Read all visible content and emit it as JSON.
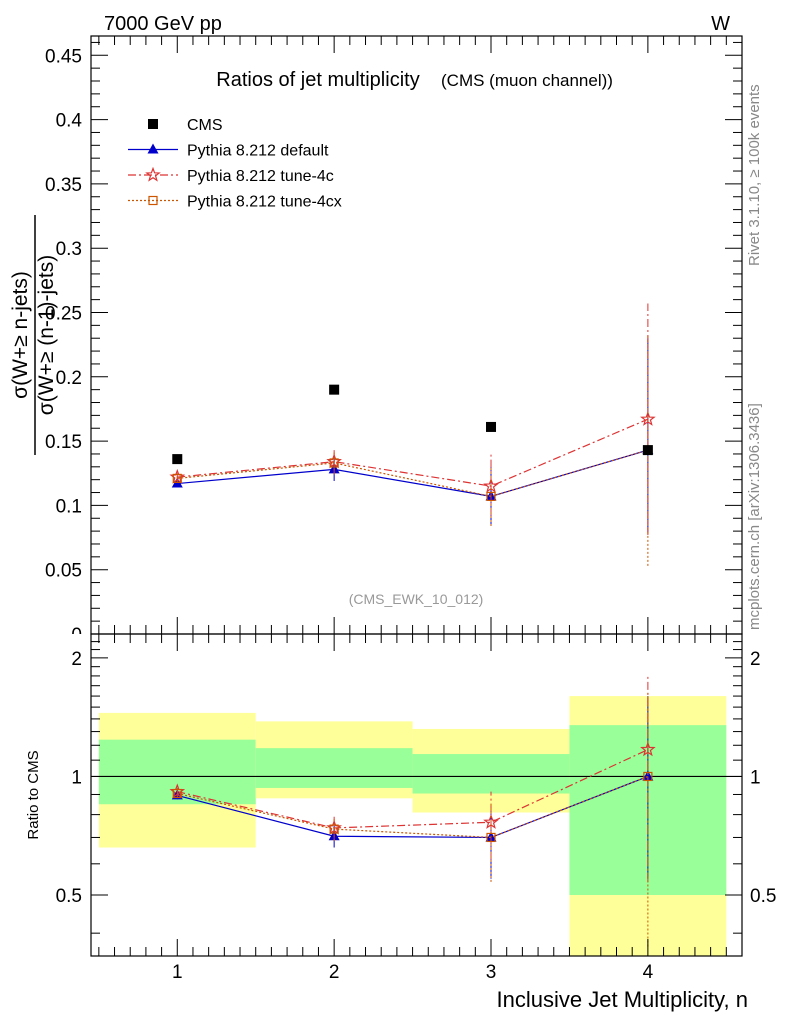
{
  "header": {
    "beam": "7000 GeV pp",
    "process": "W"
  },
  "side_labels": {
    "generator": "Rivet 3.1.10, ≥ 100k events",
    "source": "mcplots.cern.ch [arXiv:1306.3436]"
  },
  "colors": {
    "data": "#000000",
    "default": "#0000cc",
    "tune4c": "#dd3333",
    "tune4cx": "#cc5500",
    "band_inner": "#99ff99",
    "band_outer": "#ffff99"
  },
  "chart_data": [
    {
      "type": "scatter",
      "title": "Ratios of jet multiplicity",
      "subtitle": "(CMS (muon channel))",
      "watermark": "(CMS_EWK_10_012)",
      "ylabel_num": "σ(W+≥ n-jets)",
      "ylabel_den": "σ(W+≥ (n-1)-jets)",
      "xlim": [
        0.45,
        4.6
      ],
      "ylim": [
        0,
        0.465
      ],
      "yticks": [
        "0",
        "0.05",
        "0.1",
        "0.15",
        "0.2",
        "0.25",
        "0.3",
        "0.35",
        "0.4",
        "0.45"
      ],
      "legend_position": "top-left",
      "series": [
        {
          "name": "CMS",
          "key": "data",
          "marker": "square-filled",
          "line": "none",
          "x": [
            1,
            2,
            3,
            4
          ],
          "y": [
            0.136,
            0.19,
            0.161,
            0.143
          ]
        },
        {
          "name": "Pythia 8.212 default",
          "key": "default",
          "marker": "triangle",
          "line": "solid",
          "x": [
            1,
            2,
            3,
            4
          ],
          "y": [
            0.117,
            0.128,
            0.107,
            0.143
          ],
          "err_lo": [
            0.003,
            0.009,
            0.023,
            0.064
          ],
          "err_hi": [
            0.003,
            0.009,
            0.023,
            0.087
          ]
        },
        {
          "name": "Pythia 8.212 tune-4c",
          "key": "tune4c",
          "marker": "star",
          "line": "dashdot",
          "x": [
            1,
            2,
            3,
            4
          ],
          "y": [
            0.122,
            0.134,
            0.115,
            0.167
          ],
          "err_lo": [
            0.003,
            0.009,
            0.023,
            0.09
          ],
          "err_hi": [
            0.003,
            0.009,
            0.025,
            0.09
          ]
        },
        {
          "name": "Pythia 8.212 tune-4cx",
          "key": "tune4cx",
          "marker": "square-open",
          "line": "dotted",
          "x": [
            1,
            2,
            3,
            4
          ],
          "y": [
            0.121,
            0.133,
            0.107,
            0.143
          ],
          "err_lo": [
            0.003,
            0.009,
            0.023,
            0.09
          ],
          "err_hi": [
            0.003,
            0.009,
            0.023,
            0.09
          ]
        }
      ]
    },
    {
      "type": "scatter",
      "ylabel": "Ratio to CMS",
      "xlabel": "Inclusive Jet Multiplicity, n",
      "xlim": [
        0.45,
        4.6
      ],
      "ylim": [
        0.35,
        2.3
      ],
      "xticks": [
        "1",
        "2",
        "3",
        "4"
      ],
      "yticks": [
        "0.5",
        "1",
        "2"
      ],
      "scale": "log",
      "bands": [
        {
          "x0": 0.5,
          "x1": 1.5,
          "inner": [
            0.85,
            1.24
          ],
          "outer": [
            0.66,
            1.45
          ]
        },
        {
          "x0": 1.5,
          "x1": 2.5,
          "inner": [
            0.935,
            1.18
          ],
          "outer": [
            0.88,
            1.38
          ]
        },
        {
          "x0": 2.5,
          "x1": 3.5,
          "inner": [
            0.905,
            1.14
          ],
          "outer": [
            0.81,
            1.32
          ]
        },
        {
          "x0": 3.5,
          "x1": 4.5,
          "inner": [
            0.5,
            1.35
          ],
          "outer": [
            0.35,
            1.6
          ]
        }
      ],
      "series": [
        {
          "name": "Pythia 8.212 default",
          "key": "default",
          "x": [
            1,
            2,
            3,
            4
          ],
          "y": [
            0.895,
            0.705,
            0.7,
            1.0
          ],
          "err_lo": [
            0.02,
            0.045,
            0.15,
            0.45
          ],
          "err_hi": [
            0.02,
            0.045,
            0.15,
            0.6
          ]
        },
        {
          "name": "Pythia 8.212 tune-4c",
          "key": "tune4c",
          "x": [
            1,
            2,
            3,
            4
          ],
          "y": [
            0.915,
            0.74,
            0.765,
            1.17
          ],
          "err_lo": [
            0.02,
            0.05,
            0.15,
            0.63
          ],
          "err_hi": [
            0.02,
            0.05,
            0.15,
            0.63
          ]
        },
        {
          "name": "Pythia 8.212 tune-4cx",
          "key": "tune4cx",
          "x": [
            1,
            2,
            3,
            4
          ],
          "y": [
            0.905,
            0.735,
            0.7,
            1.0
          ],
          "err_lo": [
            0.02,
            0.05,
            0.16,
            0.63
          ],
          "err_hi": [
            0.02,
            0.05,
            0.16,
            0.63
          ]
        }
      ]
    }
  ]
}
